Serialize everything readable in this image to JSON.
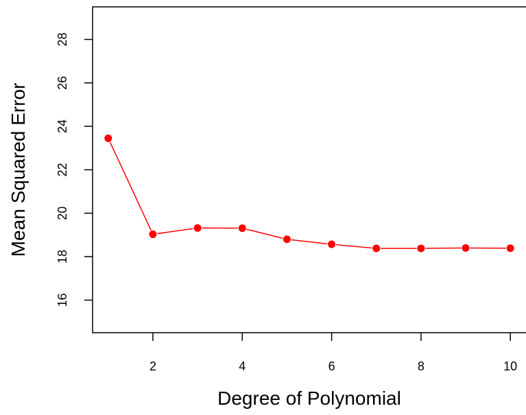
{
  "chart_data": {
    "type": "line",
    "title": "",
    "xlabel": "Degree of Polynomial",
    "ylabel": "Mean Squared Error",
    "x": [
      1,
      2,
      3,
      4,
      5,
      6,
      7,
      8,
      9,
      10
    ],
    "series": [
      {
        "values": [
          23.45,
          19.03,
          19.32,
          19.31,
          18.8,
          18.57,
          18.38,
          18.38,
          18.4,
          18.39
        ],
        "color": "#ff0000"
      }
    ],
    "xlim": [
      0.65,
      10.35
    ],
    "ylim": [
      14.5,
      29.5
    ],
    "xticks": [
      2,
      4,
      6,
      8,
      10
    ],
    "yticks": [
      16,
      18,
      20,
      22,
      24,
      26,
      28
    ],
    "xtick_labels": [
      "2",
      "4",
      "6",
      "8",
      "10"
    ],
    "ytick_labels": [
      "16",
      "18",
      "20",
      "22",
      "24",
      "26",
      "28"
    ],
    "grid": false,
    "legend": "none",
    "marker": "filled-circle"
  }
}
